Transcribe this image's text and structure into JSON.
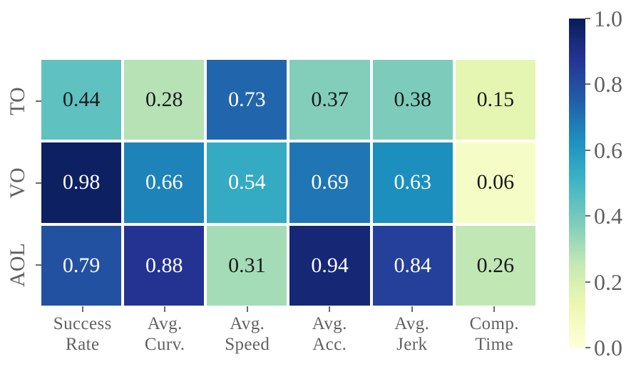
{
  "figure": {
    "background": "#ffffff",
    "label_color": "#616161",
    "tick_color": "#6b6b6b",
    "cell_gap_color": "#ffffff"
  },
  "chart_data": {
    "type": "heatmap",
    "rows": [
      "TO",
      "VO",
      "AOL"
    ],
    "columns": [
      "Success\nRate",
      "Avg.\nCurv.",
      "Avg.\nSpeed",
      "Avg.\nAcc.",
      "Avg.\nJerk",
      "Comp.\nTime"
    ],
    "values": [
      [
        0.44,
        0.28,
        0.73,
        0.37,
        0.38,
        0.15
      ],
      [
        0.98,
        0.66,
        0.54,
        0.69,
        0.63,
        0.06
      ],
      [
        0.79,
        0.88,
        0.31,
        0.94,
        0.84,
        0.26
      ]
    ],
    "cell_labels": [
      [
        "0.44",
        "0.28",
        "0.73",
        "0.37",
        "0.38",
        "0.15"
      ],
      [
        "0.98",
        "0.66",
        "0.54",
        "0.69",
        "0.63",
        "0.06"
      ],
      [
        "0.79",
        "0.88",
        "0.31",
        "0.94",
        "0.84",
        "0.26"
      ]
    ],
    "vmin": 0.0,
    "vmax": 1.0,
    "colormap": {
      "name": "YlGnBu",
      "stops": [
        "#ffffd9",
        "#edf8b1",
        "#c7e9b4",
        "#7fcdbb",
        "#41b6c4",
        "#1d91c0",
        "#225ea8",
        "#253494",
        "#081d58"
      ]
    },
    "annotation_colors": {
      "dark": "#1a1a1a",
      "light": "#ffffff"
    },
    "luminance_threshold": 0.408,
    "colorbar": {
      "ticks": [
        0.0,
        0.2,
        0.4,
        0.6,
        0.8,
        1.0
      ],
      "tick_labels": [
        "0.0",
        "0.2",
        "0.4",
        "0.6",
        "0.8",
        "1.0"
      ],
      "orientation": "vertical"
    },
    "legend_position": "right",
    "grid": false,
    "title": "",
    "xlabel": "",
    "ylabel": ""
  }
}
